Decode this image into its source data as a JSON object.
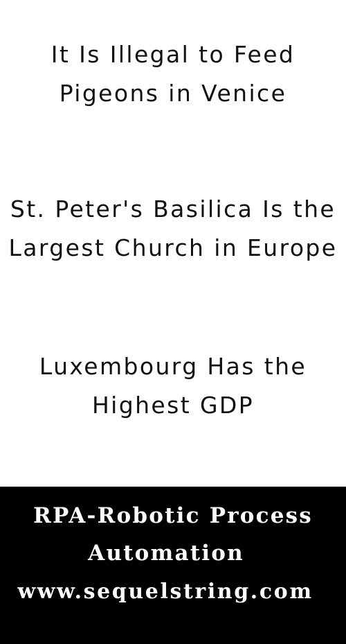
{
  "facts": [
    {
      "text": "It Is Illegal to Feed Pigeons in Venice"
    },
    {
      "text": "St. Peter's Basilica Is the Largest Church in Europe"
    },
    {
      "text": "Luxembourg Has the Highest GDP"
    }
  ],
  "footer": {
    "line1": "RPA-Robotic Process",
    "line2": "Automation",
    "website": "www.sequelstring.com",
    "background_color": "#000000",
    "text_color": "#ffffff"
  }
}
